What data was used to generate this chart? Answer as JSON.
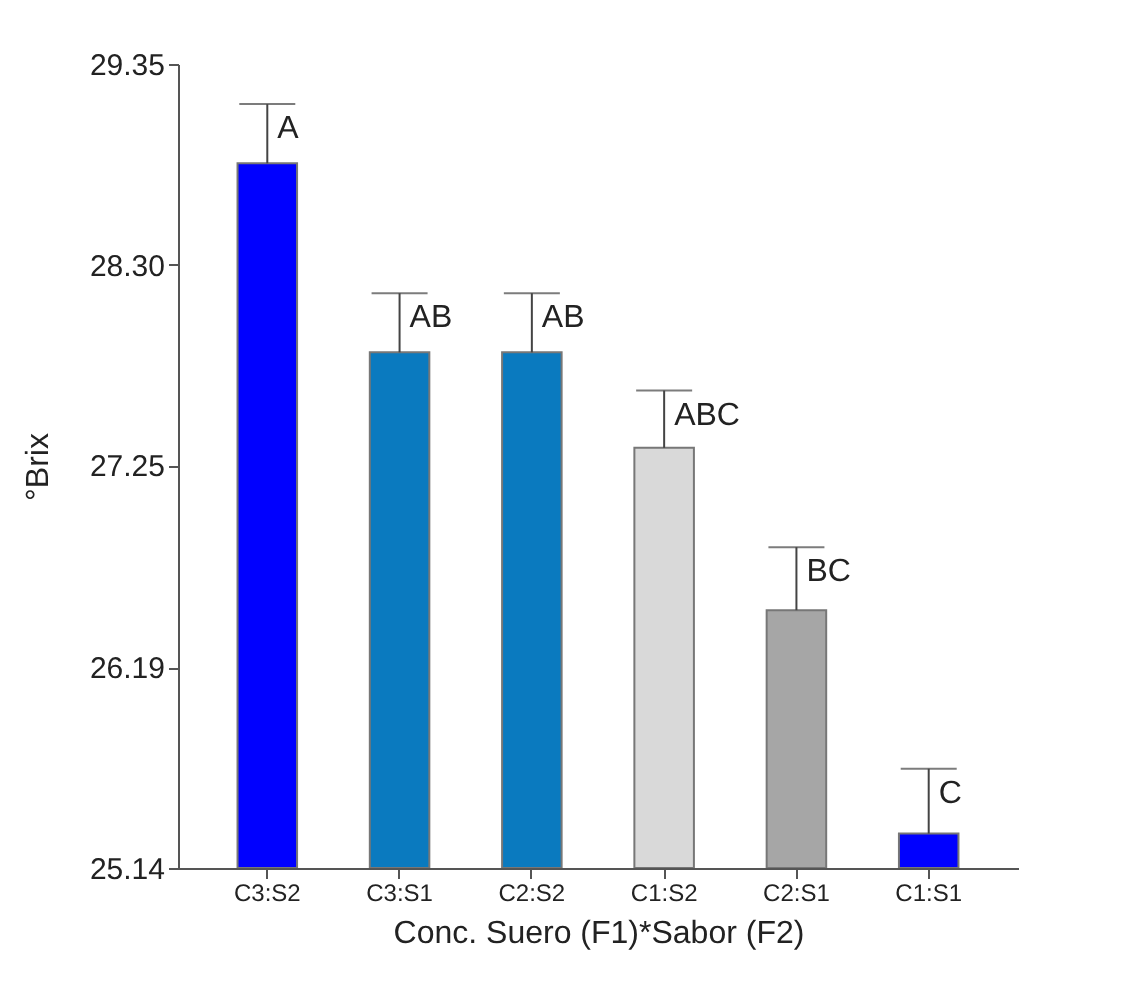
{
  "chart_data": {
    "type": "bar",
    "xlabel": "Conc. Suero (F1)*Sabor (F2)",
    "ylabel": "°Brix",
    "categories": [
      "C3:S2",
      "C3:S1",
      "C2:S2",
      "C1:S2",
      "C2:S1",
      "C1:S1"
    ],
    "values": [
      28.83,
      27.84,
      27.84,
      27.34,
      26.49,
      25.32
    ],
    "colors": [
      "#0000ff",
      "#0a7abf",
      "#0a7abf",
      "#d9d9d9",
      "#a6a6a6",
      "#0000ff"
    ],
    "errors": [
      [
        28.83,
        29.14
      ],
      [
        27.84,
        28.15
      ],
      [
        27.84,
        28.15
      ],
      [
        27.34,
        27.64
      ],
      [
        26.49,
        26.82
      ],
      [
        25.32,
        25.66
      ]
    ],
    "annotations": [
      {
        "text": "A",
        "x": "C3:S2",
        "y": 29.14
      },
      {
        "text": "AB",
        "x": "C3:S1",
        "y": 28.15
      },
      {
        "text": "AB",
        "x": "C2:S2",
        "y": 28.15
      },
      {
        "text": "ABC",
        "x": "C1:S2",
        "y": 27.64
      },
      {
        "text": "BC",
        "x": "C2:S1",
        "y": 26.82
      },
      {
        "text": "C",
        "x": "C1:S1",
        "y": 25.66
      }
    ],
    "ylim": [
      25.14,
      29.35
    ],
    "yticks": [
      25.14,
      26.19,
      27.25,
      {
        "value": 28.3,
        "label": "28.30"
      },
      29.35
    ],
    "grid": false
  }
}
